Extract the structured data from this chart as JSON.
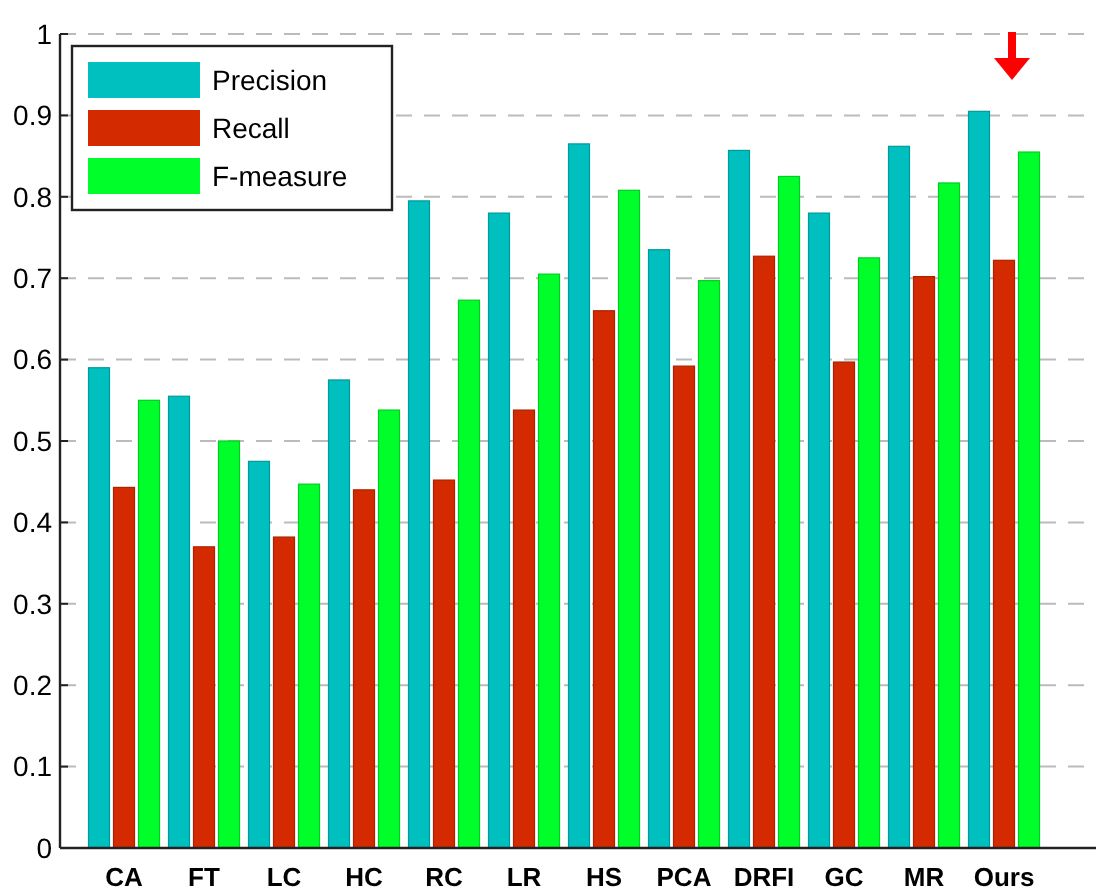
{
  "chart_data": {
    "type": "bar",
    "categories": [
      "CA",
      "FT",
      "LC",
      "HC",
      "RC",
      "LR",
      "HS",
      "PCA",
      "DRFI",
      "GC",
      "MR",
      "Ours"
    ],
    "series": [
      {
        "name": "Precision",
        "color": "#00bfbf",
        "values": [
          0.59,
          0.555,
          0.475,
          0.575,
          0.795,
          0.78,
          0.865,
          0.735,
          0.857,
          0.78,
          0.862,
          0.905
        ]
      },
      {
        "name": "Recall",
        "color": "#d42a00",
        "values": [
          0.443,
          0.37,
          0.382,
          0.44,
          0.452,
          0.538,
          0.66,
          0.592,
          0.727,
          0.597,
          0.702,
          0.722
        ]
      },
      {
        "name": "F-measure",
        "color": "#00ff2a",
        "values": [
          0.55,
          0.5,
          0.447,
          0.538,
          0.673,
          0.705,
          0.808,
          0.697,
          0.825,
          0.725,
          0.817,
          0.855
        ]
      }
    ],
    "ylim": [
      0,
      1
    ],
    "yticks": [
      0,
      0.1,
      0.2,
      0.3,
      0.4,
      0.5,
      0.6,
      0.7,
      0.8,
      0.9,
      1
    ],
    "grid": "y",
    "legend": "top left"
  }
}
